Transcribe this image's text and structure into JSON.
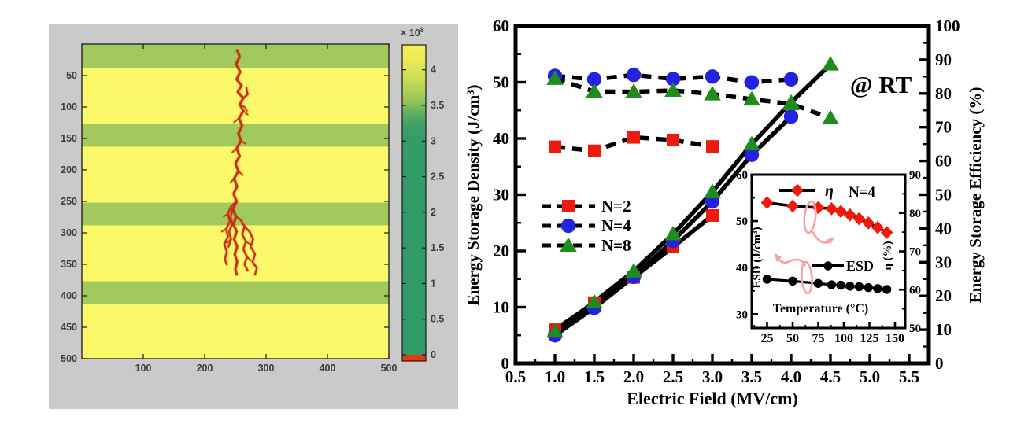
{
  "colors": {
    "panel_gray": "#cacaca",
    "layer_yellow": "#fbf96a",
    "layer_green": "#a2c95e",
    "colorbar_teal": "#2f9c69",
    "colorbar_yellow": "#f4f158",
    "colorbar_red": "#e63a10",
    "tree_red": "#c92c12",
    "marker_red": "#ee1a0c",
    "marker_blue": "#2222e0",
    "marker_green": "#1e8c1e",
    "line_black": "#000000",
    "pink_annotation": "#f7a2a2",
    "axis_gray_text": "#3c3c3c"
  },
  "chart_data": [
    {
      "type": "heatmap",
      "name": "dielectric-breakdown-simulation",
      "x_range": [
        0,
        500
      ],
      "y_range": [
        0,
        500
      ],
      "x_ticks": [
        100,
        200,
        300,
        400,
        500
      ],
      "y_ticks": [
        50,
        100,
        150,
        200,
        250,
        300,
        350,
        400,
        450,
        500
      ],
      "green_layer_bands_y": [
        [
          0,
          38
        ],
        [
          127,
          163
        ],
        [
          252,
          288
        ],
        [
          377,
          413
        ]
      ],
      "colorbar": {
        "label_base": "× 10",
        "label_exp": "8",
        "ticks": [
          0,
          0.5,
          1,
          1.5,
          2,
          2.5,
          3,
          3.5,
          4
        ],
        "vmin": 0,
        "vmax": 4.35
      },
      "breakdown_tree": {
        "trunk": [
          [
            253,
            10
          ],
          [
            257,
            20
          ],
          [
            251,
            32
          ],
          [
            258,
            44
          ],
          [
            252,
            56
          ],
          [
            260,
            66
          ],
          [
            254,
            76
          ],
          [
            263,
            86
          ],
          [
            257,
            96
          ],
          [
            263,
            106
          ],
          [
            256,
            118
          ],
          [
            261,
            130
          ],
          [
            255,
            142
          ],
          [
            259,
            154
          ],
          [
            252,
            166
          ],
          [
            257,
            178
          ],
          [
            250,
            190
          ],
          [
            255,
            202
          ],
          [
            248,
            214
          ],
          [
            253,
            226
          ],
          [
            247,
            238
          ],
          [
            252,
            250
          ],
          [
            246,
            262
          ],
          [
            251,
            274
          ],
          [
            247,
            286
          ],
          [
            252,
            298
          ],
          [
            248,
            310
          ],
          [
            253,
            322
          ],
          [
            249,
            334
          ],
          [
            253,
            346
          ],
          [
            250,
            358
          ],
          [
            252,
            366
          ]
        ],
        "branches": [
          [
            [
              252,
              250
            ],
            [
              243,
              258
            ],
            [
              238,
              270
            ],
            [
              241,
              282
            ],
            [
              235,
              294
            ],
            [
              238,
              306
            ],
            [
              232,
              318
            ],
            [
              236,
              330
            ],
            [
              233,
              342
            ],
            [
              236,
              350
            ]
          ],
          [
            [
              246,
              262
            ],
            [
              242,
              274
            ],
            [
              245,
              286
            ],
            [
              240,
              298
            ],
            [
              243,
              310
            ],
            [
              239,
              322
            ]
          ],
          [
            [
              251,
              274
            ],
            [
              259,
              280
            ],
            [
              265,
              290
            ],
            [
              261,
              302
            ],
            [
              267,
              314
            ],
            [
              263,
              326
            ],
            [
              269,
              338
            ],
            [
              265,
              350
            ],
            [
              270,
              360
            ]
          ],
          [
            [
              265,
              290
            ],
            [
              273,
              298
            ],
            [
              279,
              310
            ],
            [
              275,
              322
            ],
            [
              282,
              334
            ],
            [
              278,
              346
            ],
            [
              285,
              356
            ],
            [
              282,
              366
            ]
          ],
          [
            [
              263,
              86
            ],
            [
              270,
              80
            ],
            [
              268,
              70
            ]
          ]
        ],
        "twigs": [
          [
            [
              257,
              96
            ],
            [
              265,
              100
            ],
            [
              269,
              106
            ]
          ],
          [
            [
              256,
              118
            ],
            [
              248,
              124
            ]
          ],
          [
            [
              259,
              154
            ],
            [
              266,
              158
            ]
          ],
          [
            [
              252,
              166
            ],
            [
              245,
              172
            ]
          ],
          [
            [
              255,
              202
            ],
            [
              262,
              208
            ]
          ],
          [
            [
              248,
              214
            ],
            [
              242,
              220
            ]
          ],
          [
            [
              263,
              106
            ],
            [
              270,
              112
            ]
          ],
          [
            [
              238,
              270
            ],
            [
              231,
              274
            ]
          ],
          [
            [
              267,
              314
            ],
            [
              274,
              318
            ]
          ],
          [
            [
              243,
              310
            ],
            [
              236,
              316
            ]
          ],
          [
            [
              269,
              338
            ],
            [
              275,
              344
            ]
          ],
          [
            [
              235,
              294
            ],
            [
              228,
              298
            ]
          ]
        ]
      }
    },
    {
      "type": "line",
      "name": "energy-storage-vs-field",
      "xlabel": "Electric Field (MV/cm)",
      "ylabel_left": "Energy Storage Density (J/cm³)",
      "ylabel_right": "Energy Storage Efficiency (%)",
      "annotation": "@ RT",
      "x_ticks": [
        0.5,
        1.0,
        1.5,
        2.0,
        2.5,
        3.0,
        3.5,
        4.0,
        4.5,
        5.0,
        5.5
      ],
      "x_range": [
        0.5,
        5.75
      ],
      "yleft_ticks": [
        0,
        10,
        20,
        30,
        40,
        50,
        60
      ],
      "yleft_range": [
        0,
        60
      ],
      "yright_ticks": [
        0,
        10,
        20,
        30,
        40,
        50,
        60,
        70,
        80,
        90,
        100
      ],
      "yright_range": [
        0,
        100
      ],
      "legend": [
        {
          "label": "N=2",
          "marker": "square",
          "color": "#ee1a0c"
        },
        {
          "label": "N=4",
          "marker": "circle",
          "color": "#2222e0"
        },
        {
          "label": "N=8",
          "marker": "triangle",
          "color": "#1e8c1e"
        }
      ],
      "series_esd": [
        {
          "name": "N=2",
          "marker": "square",
          "color": "#ee1a0c",
          "x": [
            1.0,
            1.5,
            2.0,
            2.5,
            3.0
          ],
          "y": [
            6.0,
            10.8,
            15.3,
            20.7,
            26.3
          ]
        },
        {
          "name": "N=4",
          "marker": "circle",
          "color": "#2222e0",
          "x": [
            1.0,
            1.5,
            2.0,
            2.5,
            3.0,
            3.5,
            4.0
          ],
          "y": [
            5.0,
            9.9,
            15.4,
            21.8,
            28.8,
            37.1,
            43.9
          ]
        },
        {
          "name": "N=8",
          "marker": "triangle",
          "color": "#1e8c1e",
          "x": [
            1.0,
            1.5,
            2.0,
            2.5,
            3.0,
            3.5,
            4.0,
            4.5
          ],
          "y": [
            5.7,
            10.9,
            16.4,
            23.0,
            30.5,
            39.0,
            46.4,
            53.2
          ]
        }
      ],
      "series_efficiency": [
        {
          "name": "N=2",
          "marker": "square",
          "color": "#ee1a0c",
          "x": [
            1.0,
            1.5,
            2.0,
            2.5,
            3.0
          ],
          "y": [
            64.2,
            63.0,
            67.0,
            66.2,
            64.3
          ]
        },
        {
          "name": "N=4",
          "marker": "circle",
          "color": "#2222e0",
          "x": [
            1.0,
            1.5,
            2.0,
            2.5,
            3.0,
            3.5,
            4.0
          ],
          "y": [
            85.2,
            84.2,
            85.5,
            84.3,
            85.0,
            83.3,
            84.2
          ]
        },
        {
          "name": "N=8",
          "marker": "triangle",
          "color": "#1e8c1e",
          "x": [
            1.0,
            1.5,
            2.0,
            2.5,
            3.0,
            3.5,
            4.0,
            4.5
          ],
          "y": [
            84.4,
            80.6,
            80.5,
            80.9,
            79.8,
            78.3,
            76.9,
            72.7
          ]
        }
      ]
    },
    {
      "type": "line",
      "name": "inset-temperature-dependence",
      "xlabel": "Temperature (°C)",
      "ylabel_left": "ESD (J/cm³)",
      "ylabel_right": "η (%)",
      "annotation": "N=4",
      "x_ticks": [
        25,
        50,
        75,
        100,
        125,
        150
      ],
      "x_range": [
        10,
        160
      ],
      "yleft_ticks": [
        30,
        40,
        50,
        60
      ],
      "yleft_range": [
        27,
        60
      ],
      "yright_ticks": [
        50,
        60,
        70,
        80,
        90
      ],
      "yright_range": [
        50,
        90
      ],
      "legend": [
        {
          "label": "η",
          "marker": "diamond",
          "color": "#ee1a0c"
        },
        {
          "label": "ESD",
          "marker": "circle",
          "color": "#000000"
        }
      ],
      "series": [
        {
          "name": "η",
          "axis": "right",
          "marker": "diamond",
          "color": "#ee1a0c",
          "x": [
            25,
            50,
            75,
            88,
            97,
            106,
            115,
            124,
            133,
            142
          ],
          "y": [
            82.7,
            81.8,
            81.4,
            81.1,
            80.4,
            79.5,
            78.5,
            77.4,
            76.2,
            74.9
          ]
        },
        {
          "name": "ESD",
          "axis": "left",
          "marker": "circle",
          "color": "#000000",
          "x": [
            25,
            50,
            75,
            88,
            97,
            106,
            115,
            124,
            133,
            142
          ],
          "y": [
            37.5,
            37.1,
            36.6,
            36.3,
            36.2,
            36.0,
            35.9,
            35.7,
            35.5,
            35.3
          ],
          "error": 0.5
        }
      ]
    }
  ]
}
